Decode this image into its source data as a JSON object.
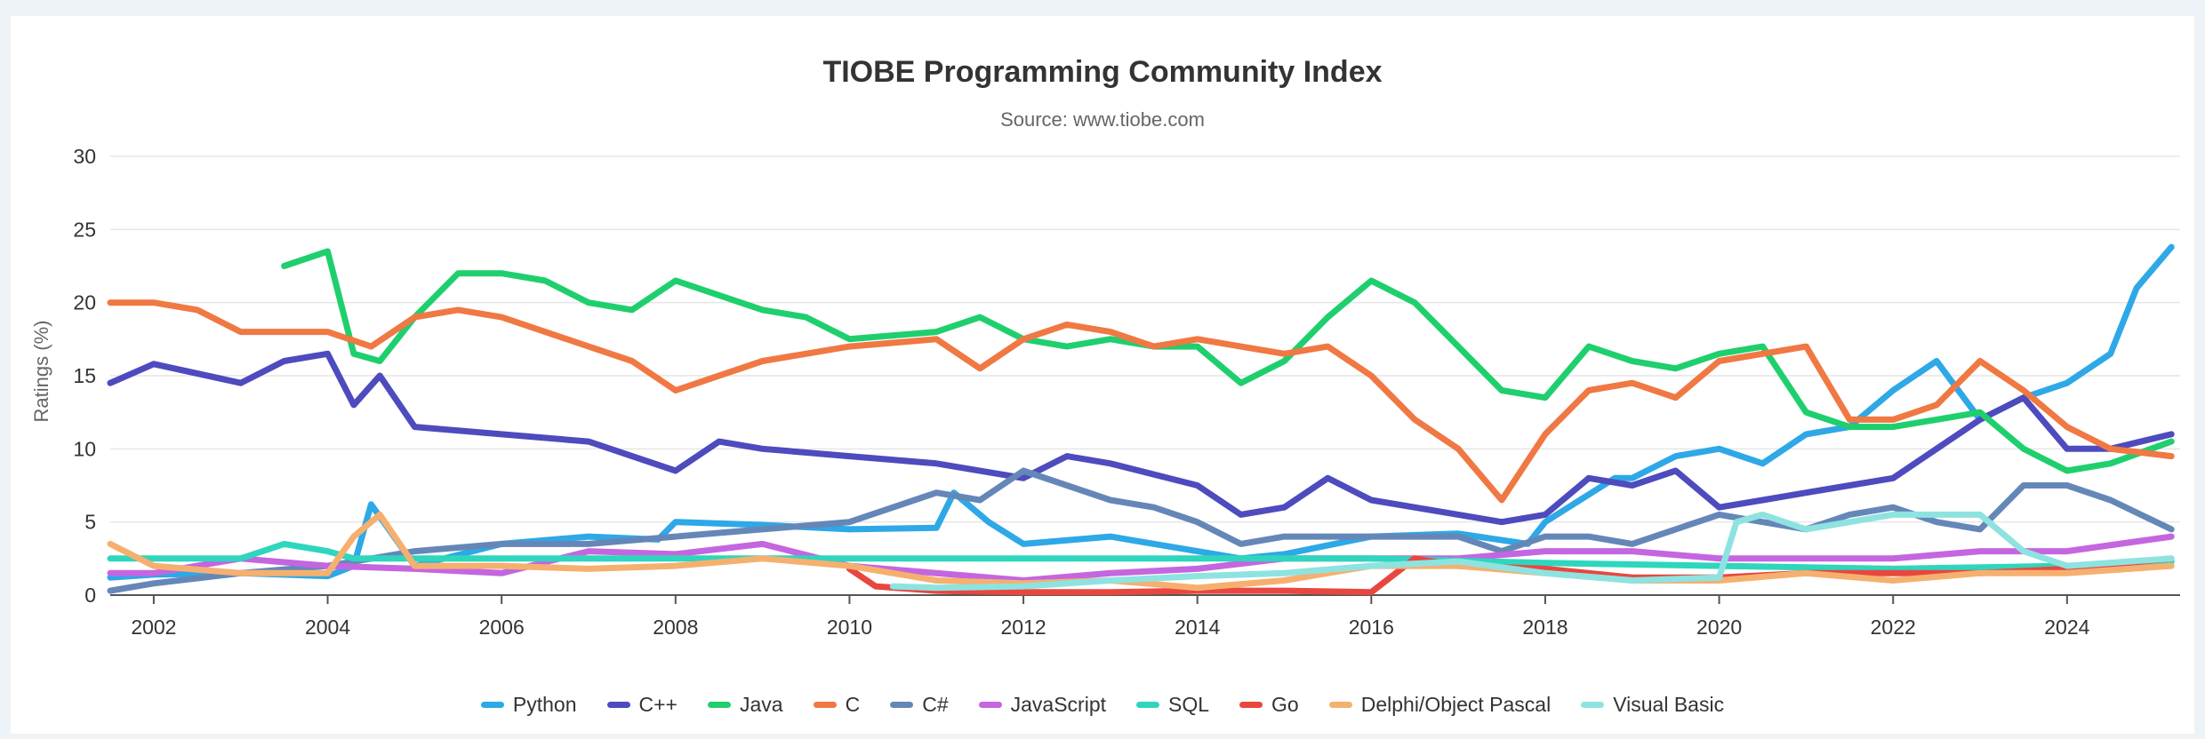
{
  "chart_data": {
    "type": "line",
    "title": "TIOBE Programming Community Index",
    "subtitle": "Source: www.tiobe.com",
    "xlabel": "",
    "ylabel": "Ratings (%)",
    "xlim": [
      2001.5,
      2025.3
    ],
    "ylim": [
      0,
      30
    ],
    "yticks": [
      0,
      5,
      10,
      15,
      20,
      25,
      30
    ],
    "xticks": [
      2002,
      2004,
      2006,
      2008,
      2010,
      2012,
      2014,
      2016,
      2018,
      2020,
      2022,
      2024
    ],
    "grid": true,
    "legend_position": "bottom",
    "series": [
      {
        "name": "Python",
        "color": "#2ea8e6",
        "x": [
          2001.5,
          2002,
          2003,
          2004,
          2004.3,
          2004.5,
          2005,
          2006,
          2007,
          2007.8,
          2008,
          2009,
          2010,
          2011,
          2011.2,
          2011.6,
          2012,
          2013,
          2014,
          2014.5,
          2015,
          2016,
          2017,
          2017.8,
          2018,
          2018.8,
          2019,
          2019.5,
          2020,
          2020.5,
          2021,
          2021.5,
          2022,
          2022.5,
          2023,
          2023.5,
          2024,
          2024.5,
          2024.8,
          2025.2
        ],
        "values": [
          1.2,
          1.4,
          1.5,
          1.3,
          2.0,
          6.2,
          2.0,
          3.5,
          4.0,
          3.8,
          5.0,
          4.8,
          4.5,
          4.6,
          7.0,
          5.0,
          3.5,
          4.0,
          3.0,
          2.5,
          2.8,
          4.0,
          4.2,
          3.5,
          5.0,
          8.0,
          8.0,
          9.5,
          10.0,
          9.0,
          11.0,
          11.5,
          14.0,
          16.0,
          12.0,
          13.5,
          14.5,
          16.5,
          21.0,
          23.8
        ]
      },
      {
        "name": "C++",
        "color": "#4d4bbd",
        "x": [
          2001.5,
          2002,
          2003,
          2003.5,
          2004,
          2004.3,
          2004.6,
          2005,
          2006,
          2007,
          2008,
          2008.5,
          2009,
          2010,
          2011,
          2012,
          2012.5,
          2013,
          2014,
          2014.5,
          2015,
          2015.5,
          2016,
          2017,
          2017.5,
          2018,
          2018.5,
          2019,
          2019.5,
          2020,
          2020.5,
          2021,
          2021.5,
          2022,
          2022.5,
          2023,
          2023.5,
          2024,
          2024.5,
          2025.2
        ],
        "values": [
          14.5,
          15.8,
          14.5,
          16.0,
          16.5,
          13.0,
          15.0,
          11.5,
          11.0,
          10.5,
          8.5,
          10.5,
          10.0,
          9.5,
          9.0,
          8.0,
          9.5,
          9.0,
          7.5,
          5.5,
          6.0,
          8.0,
          6.5,
          5.5,
          5.0,
          5.5,
          8.0,
          7.5,
          8.5,
          6.0,
          6.5,
          7.0,
          7.5,
          8.0,
          10.0,
          12.0,
          13.5,
          10.0,
          10.0,
          11.0
        ]
      },
      {
        "name": "Java",
        "color": "#1fcf6e",
        "x": [
          2003.5,
          2004,
          2004.3,
          2004.6,
          2005,
          2005.5,
          2006,
          2006.5,
          2007,
          2007.5,
          2008,
          2008.5,
          2009,
          2009.5,
          2010,
          2011,
          2011.5,
          2012,
          2012.5,
          2013,
          2013.5,
          2014,
          2014.5,
          2015,
          2015.5,
          2016,
          2016.5,
          2017,
          2017.5,
          2018,
          2018.5,
          2019,
          2019.5,
          2020,
          2020.5,
          2021,
          2021.5,
          2022,
          2022.5,
          2023,
          2023.5,
          2024,
          2024.5,
          2025.2
        ],
        "values": [
          22.5,
          23.5,
          16.5,
          16.0,
          19.0,
          22.0,
          22.0,
          21.5,
          20.0,
          19.5,
          21.5,
          20.5,
          19.5,
          19.0,
          17.5,
          18.0,
          19.0,
          17.5,
          17.0,
          17.5,
          17.0,
          17.0,
          14.5,
          16.0,
          19.0,
          21.5,
          20.0,
          17.0,
          14.0,
          13.5,
          17.0,
          16.0,
          15.5,
          16.5,
          17.0,
          12.5,
          11.5,
          11.5,
          12.0,
          12.5,
          10.0,
          8.5,
          9.0,
          10.5
        ]
      },
      {
        "name": "C",
        "color": "#f07843",
        "x": [
          2001.5,
          2002,
          2002.5,
          2003,
          2003.5,
          2004,
          2004.5,
          2005,
          2005.5,
          2006,
          2006.5,
          2007,
          2007.5,
          2008,
          2008.5,
          2009,
          2009.5,
          2010,
          2011,
          2011.5,
          2012,
          2012.5,
          2013,
          2013.5,
          2014,
          2014.5,
          2015,
          2015.5,
          2016,
          2016.5,
          2017,
          2017.5,
          2018,
          2018.5,
          2019,
          2019.5,
          2020,
          2020.5,
          2021,
          2021.5,
          2022,
          2022.5,
          2023,
          2023.5,
          2024,
          2024.5,
          2025.2
        ],
        "values": [
          20.0,
          20.0,
          19.5,
          18.0,
          18.0,
          18.0,
          17.0,
          19.0,
          19.5,
          19.0,
          18.0,
          17.0,
          16.0,
          14.0,
          15.0,
          16.0,
          16.5,
          17.0,
          17.5,
          15.5,
          17.5,
          18.5,
          18.0,
          17.0,
          17.5,
          17.0,
          16.5,
          17.0,
          15.0,
          12.0,
          10.0,
          6.5,
          11.0,
          14.0,
          14.5,
          13.5,
          16.0,
          16.5,
          17.0,
          12.0,
          12.0,
          13.0,
          16.0,
          14.0,
          11.5,
          10.0,
          9.5
        ]
      },
      {
        "name": "C#",
        "color": "#6587b8",
        "x": [
          2001.5,
          2002,
          2003,
          2004,
          2005,
          2006,
          2007,
          2008,
          2009,
          2010,
          2010.5,
          2011,
          2011.5,
          2012,
          2012.5,
          2013,
          2013.5,
          2014,
          2014.5,
          2015,
          2016,
          2017,
          2017.5,
          2018,
          2018.5,
          2019,
          2019.5,
          2020,
          2020.5,
          2021,
          2021.5,
          2022,
          2022.5,
          2023,
          2023.5,
          2024,
          2024.5,
          2025.2
        ],
        "values": [
          0.3,
          0.8,
          1.5,
          2.0,
          3.0,
          3.5,
          3.5,
          4.0,
          4.5,
          5.0,
          6.0,
          7.0,
          6.5,
          8.5,
          7.5,
          6.5,
          6.0,
          5.0,
          3.5,
          4.0,
          4.0,
          4.0,
          3.0,
          4.0,
          4.0,
          3.5,
          4.5,
          5.5,
          5.0,
          4.5,
          5.5,
          6.0,
          5.0,
          4.5,
          7.5,
          7.5,
          6.5,
          4.5
        ]
      },
      {
        "name": "JavaScript",
        "color": "#c466e0",
        "x": [
          2001.5,
          2002,
          2003,
          2004,
          2005,
          2006,
          2007,
          2008,
          2009,
          2010,
          2011,
          2012,
          2013,
          2014,
          2015,
          2016,
          2017,
          2018,
          2019,
          2020,
          2021,
          2022,
          2023,
          2024,
          2024.6,
          2025.2
        ],
        "values": [
          1.5,
          1.5,
          2.5,
          2.0,
          1.8,
          1.5,
          3.0,
          2.8,
          3.5,
          2.0,
          1.5,
          1.0,
          1.5,
          1.8,
          2.5,
          2.5,
          2.5,
          3.0,
          3.0,
          2.5,
          2.5,
          2.5,
          3.0,
          3.0,
          3.5,
          4.0
        ]
      },
      {
        "name": "SQL",
        "color": "#2ed6bd",
        "x": [
          2001.5,
          2002,
          2003,
          2003.5,
          2004,
          2004.3,
          2005,
          2010,
          2014,
          2016,
          2018,
          2020,
          2022,
          2024,
          2025.2
        ],
        "values": [
          2.5,
          2.5,
          2.5,
          3.5,
          3.0,
          2.5,
          2.5,
          2.5,
          2.5,
          2.5,
          2.2,
          2.0,
          1.8,
          2.0,
          2.3
        ]
      },
      {
        "name": "Go",
        "color": "#e8473f",
        "x": [
          2010,
          2010.3,
          2011,
          2012,
          2013,
          2014,
          2015,
          2016,
          2016.5,
          2017,
          2018,
          2019,
          2020,
          2021,
          2022,
          2023,
          2024,
          2025.2
        ],
        "values": [
          1.8,
          0.6,
          0.3,
          0.2,
          0.2,
          0.3,
          0.3,
          0.2,
          2.5,
          2.0,
          1.8,
          1.2,
          1.2,
          1.5,
          1.5,
          1.5,
          1.8,
          2.5
        ]
      },
      {
        "name": "Delphi/Object Pascal",
        "color": "#f5b070",
        "x": [
          2001.5,
          2002,
          2003,
          2004,
          2004.3,
          2004.6,
          2005,
          2006,
          2007,
          2008,
          2009,
          2010,
          2011,
          2012,
          2013,
          2014,
          2015,
          2016,
          2017,
          2018,
          2019,
          2020,
          2021,
          2022,
          2023,
          2024,
          2025.2
        ],
        "values": [
          3.5,
          2.0,
          1.5,
          1.5,
          4.0,
          5.5,
          2.0,
          2.0,
          1.8,
          2.0,
          2.5,
          2.0,
          1.0,
          0.8,
          1.0,
          0.5,
          1.0,
          2.0,
          2.0,
          1.5,
          1.0,
          1.0,
          1.5,
          1.0,
          1.5,
          1.5,
          2.0
        ]
      },
      {
        "name": "Visual Basic",
        "color": "#8ee3e0",
        "x": [
          2010.5,
          2011,
          2012,
          2013,
          2014,
          2015,
          2016,
          2017,
          2018,
          2019,
          2020,
          2020.2,
          2020.5,
          2021,
          2022,
          2023,
          2023.5,
          2024,
          2025.2
        ],
        "values": [
          0.6,
          0.5,
          0.6,
          1.0,
          1.3,
          1.5,
          2.0,
          2.3,
          1.5,
          1.0,
          1.2,
          5.0,
          5.5,
          4.5,
          5.5,
          5.5,
          3.0,
          2.0,
          2.5
        ]
      }
    ]
  }
}
